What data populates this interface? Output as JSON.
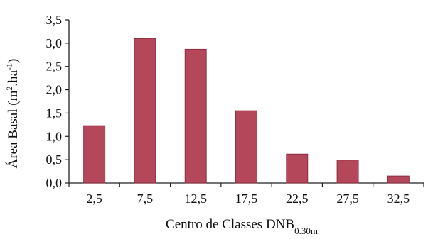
{
  "chart_data": {
    "type": "bar",
    "title": "",
    "categories": [
      "2,5",
      "7,5",
      "12,5",
      "17,5",
      "22,5",
      "27,5",
      "32,5"
    ],
    "values": [
      1.23,
      3.1,
      2.87,
      1.55,
      0.62,
      0.49,
      0.15
    ],
    "xlabel": {
      "main": "Centro de Classes DNB",
      "sub": "0.30m"
    },
    "ylabel": {
      "main": "Área Basal (m",
      "sup1": "2",
      "mid": ".ha",
      "sup2": "-1",
      "end": ")"
    },
    "ylim": [
      0,
      3.5
    ],
    "yticks": [
      {
        "value": 0,
        "label": "0,0"
      },
      {
        "value": 0.5,
        "label": "0,5"
      },
      {
        "value": 1.0,
        "label": "1,0"
      },
      {
        "value": 1.5,
        "label": "1,5"
      },
      {
        "value": 2.0,
        "label": "2,0"
      },
      {
        "value": 2.5,
        "label": "2,5"
      },
      {
        "value": 3.0,
        "label": "3,0"
      },
      {
        "value": 3.5,
        "label": "3,5"
      }
    ],
    "grid": false,
    "legend": "none",
    "bar_color": "#b5475a",
    "bar_border_color": "#8c2e40"
  }
}
